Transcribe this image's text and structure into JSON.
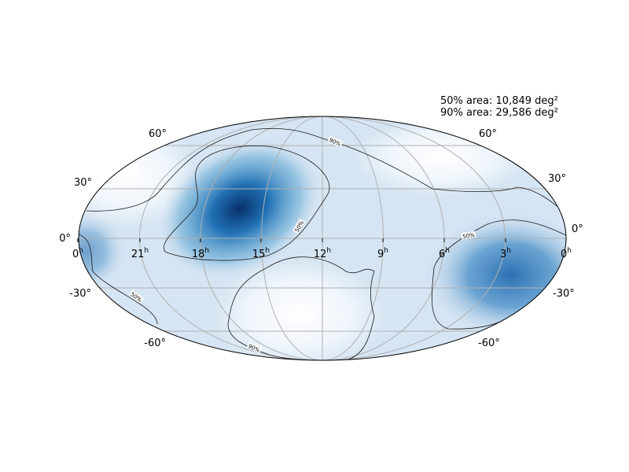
{
  "annotation": {
    "lines": [
      "50% area: 10,849 deg²",
      "90% area: 29,586 deg²"
    ]
  },
  "dec_labels": {
    "left": [
      "60°",
      "30°",
      "0°",
      "-30°",
      "-60°"
    ],
    "right": [
      "60°",
      "30°",
      "0°",
      "-30°",
      "-60°"
    ]
  },
  "ra_labels": [
    {
      "hour": "0",
      "sup": "h"
    },
    {
      "hour": "21",
      "sup": "h"
    },
    {
      "hour": "18",
      "sup": "h"
    },
    {
      "hour": "15",
      "sup": "h"
    },
    {
      "hour": "12",
      "sup": "h"
    },
    {
      "hour": "9",
      "sup": "h"
    },
    {
      "hour": "6",
      "sup": "h"
    },
    {
      "hour": "3",
      "sup": "h"
    },
    {
      "hour": "0",
      "sup": "h"
    }
  ],
  "contour_labels": [
    "90%",
    "50%",
    "50%",
    "50%",
    "90%"
  ]
}
